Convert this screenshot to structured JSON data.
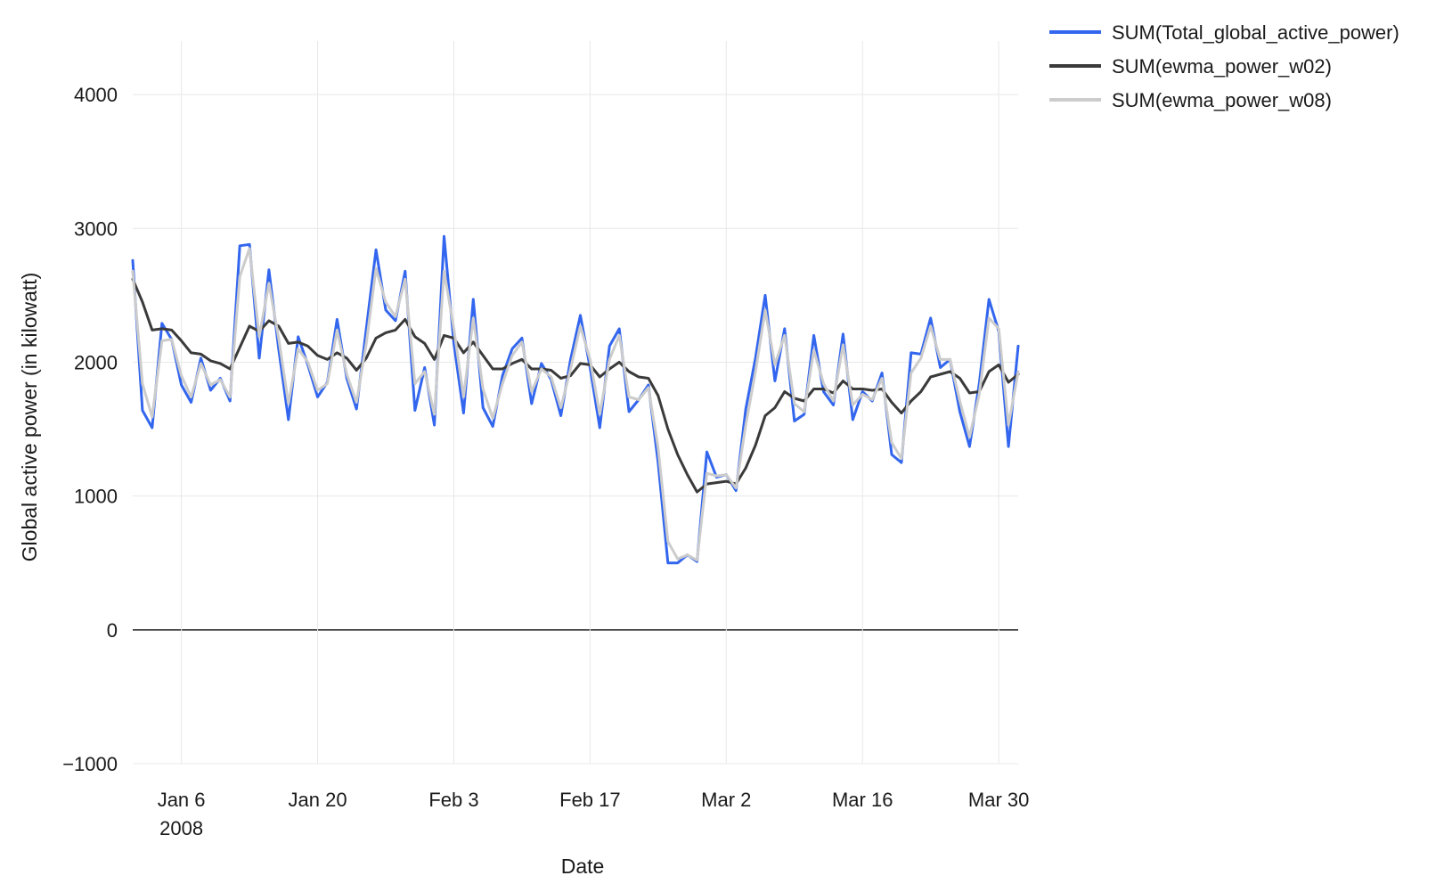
{
  "chart_data": {
    "type": "line",
    "title": "",
    "xlabel": "Date",
    "ylabel": "Global active power (in kilowatt)",
    "x_start": "2008-01-01",
    "x_end": "2008-04-01",
    "ylim": [
      -1000,
      4400
    ],
    "grid": true,
    "legend_position": "top-right",
    "x_ticks": [
      {
        "date": "2008-01-06",
        "label": "Jan 6",
        "sublabel": "2008"
      },
      {
        "date": "2008-01-20",
        "label": "Jan 20",
        "sublabel": ""
      },
      {
        "date": "2008-02-03",
        "label": "Feb 3",
        "sublabel": ""
      },
      {
        "date": "2008-02-17",
        "label": "Feb 17",
        "sublabel": ""
      },
      {
        "date": "2008-03-02",
        "label": "Mar 2",
        "sublabel": ""
      },
      {
        "date": "2008-03-16",
        "label": "Mar 16",
        "sublabel": ""
      },
      {
        "date": "2008-03-30",
        "label": "Mar 30",
        "sublabel": ""
      }
    ],
    "y_ticks": [
      {
        "value": -1000,
        "label": "−1000"
      },
      {
        "value": 0,
        "label": "0"
      },
      {
        "value": 1000,
        "label": "1000"
      },
      {
        "value": 2000,
        "label": "2000"
      },
      {
        "value": 3000,
        "label": "3000"
      },
      {
        "value": 4000,
        "label": "4000"
      }
    ],
    "series": [
      {
        "name": "SUM(Total_global_active_power)",
        "color": "#3366ee",
        "values": [
          2760,
          1640,
          1510,
          2290,
          2170,
          1830,
          1700,
          2030,
          1790,
          1880,
          1710,
          2870,
          2880,
          2030,
          2690,
          2100,
          1570,
          2190,
          1980,
          1740,
          1850,
          2320,
          1880,
          1650,
          2250,
          2840,
          2390,
          2310,
          2680,
          1640,
          1960,
          1530,
          2940,
          2140,
          1620,
          2470,
          1660,
          1520,
          1900,
          2100,
          2180,
          1690,
          1990,
          1870,
          1600,
          2020,
          2350,
          1960,
          1510,
          2120,
          2250,
          1630,
          1720,
          1830,
          1250,
          500,
          500,
          560,
          510,
          1330,
          1140,
          1160,
          1040,
          1650,
          2030,
          2500,
          1860,
          2250,
          1560,
          1610,
          2200,
          1780,
          1680,
          2210,
          1570,
          1780,
          1710,
          1920,
          1310,
          1250,
          2070,
          2060,
          2330,
          1960,
          2020,
          1630,
          1370,
          1840,
          2470,
          2230,
          1370,
          2120
        ]
      },
      {
        "name": "SUM(ewma_power_w02)",
        "color": "#3a3a3a",
        "values": [
          2620,
          2450,
          2240,
          2250,
          2240,
          2160,
          2070,
          2060,
          2010,
          1990,
          1950,
          2110,
          2270,
          2230,
          2310,
          2270,
          2140,
          2150,
          2120,
          2050,
          2020,
          2070,
          2030,
          1940,
          2030,
          2180,
          2220,
          2240,
          2320,
          2190,
          2140,
          2020,
          2200,
          2180,
          2070,
          2150,
          2050,
          1950,
          1950,
          1990,
          2020,
          1950,
          1950,
          1940,
          1880,
          1900,
          1990,
          1980,
          1890,
          1950,
          2000,
          1930,
          1890,
          1880,
          1750,
          1500,
          1310,
          1160,
          1030,
          1090,
          1100,
          1110,
          1090,
          1210,
          1380,
          1600,
          1660,
          1780,
          1730,
          1710,
          1800,
          1800,
          1770,
          1860,
          1800,
          1800,
          1790,
          1800,
          1700,
          1620,
          1710,
          1780,
          1890,
          1910,
          1930,
          1880,
          1770,
          1780,
          1930,
          1980,
          1850,
          1910
        ]
      },
      {
        "name": "SUM(ewma_power_w08)",
        "color": "#cccccc",
        "values": [
          2680,
          1840,
          1590,
          2160,
          2170,
          1900,
          1740,
          1990,
          1830,
          1870,
          1740,
          2640,
          2850,
          2190,
          2590,
          2180,
          1690,
          2100,
          2000,
          1790,
          1840,
          2240,
          1910,
          1700,
          2140,
          2700,
          2450,
          2340,
          2620,
          1840,
          1930,
          1610,
          2680,
          2250,
          1740,
          2330,
          1800,
          1580,
          1840,
          2050,
          2150,
          1780,
          1950,
          1890,
          1660,
          1950,
          2270,
          2020,
          1610,
          2020,
          2200,
          1740,
          1720,
          1810,
          1360,
          660,
          530,
          560,
          520,
          1170,
          1150,
          1160,
          1060,
          1530,
          1930,
          2390,
          1980,
          2200,
          1690,
          1630,
          2090,
          1840,
          1710,
          2130,
          1680,
          1760,
          1720,
          1880,
          1400,
          1280,
          1920,
          2030,
          2270,
          2020,
          2020,
          1710,
          1440,
          1760,
          2330,
          2250,
          1530,
          1930
        ]
      }
    ]
  }
}
